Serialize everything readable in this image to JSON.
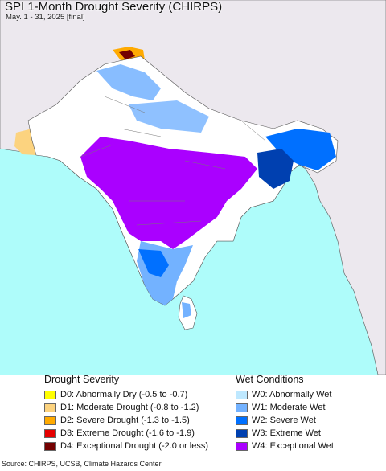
{
  "title": "SPI 1-Month Drought Severity (CHIRPS)",
  "subtitle": "May. 1 - 31, 2025 [final]",
  "legend": {
    "drought_title": "Drought Severity",
    "drought_items": [
      {
        "label": "D0: Abnormally Dry (-0.5 to -0.7)",
        "color": "#ffff00"
      },
      {
        "label": "D1: Moderate Drought (-0.8 to -1.2)",
        "color": "#fcd37f"
      },
      {
        "label": "D2: Severe Drought (-1.3 to -1.5)",
        "color": "#ffaa00"
      },
      {
        "label": "D3: Extreme Drought (-1.6 to -1.9)",
        "color": "#e60000"
      },
      {
        "label": "D4: Exceptional Drought (-2.0 or less)",
        "color": "#730000"
      }
    ],
    "wet_title": "Wet Conditions",
    "wet_items": [
      {
        "label": "W0: Abnormally Wet",
        "color": "#bee8ff"
      },
      {
        "label": "W1: Moderate Wet",
        "color": "#73b2ff"
      },
      {
        "label": "W2: Severe Wet",
        "color": "#0070ff"
      },
      {
        "label": "W3: Extreme Wet",
        "color": "#0040b0"
      },
      {
        "label": "W4: Exceptional Wet",
        "color": "#aa00ff"
      }
    ]
  },
  "source": "Source: CHIRPS, UCSB, Climate Hazards Center",
  "colors": {
    "ocean": "#aefcfa",
    "land_outside": "#ece8ee",
    "land_normal": "#ffffff",
    "borders": "#555555"
  }
}
